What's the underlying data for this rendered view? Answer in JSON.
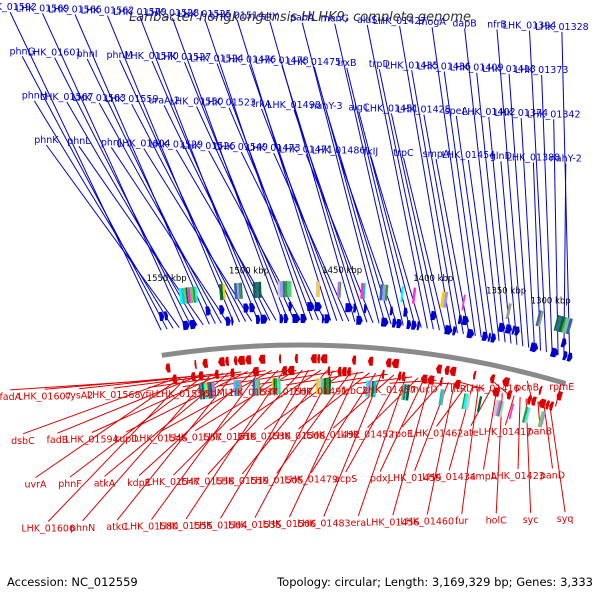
{
  "title": "Laribacter hongkongensis HLHK9, complete genome",
  "footer": {
    "accession": "Accession: NC_012559",
    "summary": "Topology: circular; Length: 3,169,329 bp; Genes: 3,333"
  },
  "colors": {
    "forward_strand": "#0000cc",
    "reverse_strand": "#dd0000",
    "backbone": "#8a8a8a",
    "feature_palette": [
      "#00cccc",
      "#339933",
      "#ff33cc",
      "#9999ff",
      "#66cc66",
      "#999999",
      "#ffcc00",
      "#336699",
      "#cc66ff",
      "#00ffff",
      "#006633",
      "#cccccc"
    ]
  },
  "kbp_ticks": [
    "1300 kbp",
    "1350 kbp",
    "1400 kbp",
    "1450 kbp",
    "1500 kbp",
    "1550 kbp"
  ],
  "forward_genes": [
    "LHK_01592",
    "phnG",
    "phnH",
    "phnK",
    "LHK_01569",
    "LHK_01601",
    "LHK_01567",
    "phnL",
    "LHK_01566",
    "phnI",
    "LHK_01563",
    "phnJ",
    "LHK_01562",
    "phnM",
    "LHK_01559",
    "LHK_01604",
    "LHK_01579",
    "LHK_01570",
    "uraA-2",
    "LHK_01529",
    "LHK_01528",
    "LHK_01527",
    "LHK_01550",
    "LHK_01526",
    "LHK_01525",
    "LHK_01524",
    "LHK_01523",
    "LHK_01549",
    "LHK_01514",
    "LHK_01476",
    "trkA",
    "LHK_01473",
    "sltY",
    "LHK_01478",
    "LHK_01498",
    "LHK_01471",
    "pabA",
    "LHK_01475",
    "nahY-3",
    "LHK_01486",
    "menG",
    "trxB",
    "algC",
    "fkIJ",
    "alaS",
    "trpD",
    "LHK_01451",
    "trpC",
    "LHK_01427",
    "LHK_01435",
    "LHK_01425",
    "smpA",
    "mogA",
    "LHK_01436",
    "speA",
    "LHK_01454",
    "dapB",
    "LHK_01409",
    "LHK_01402",
    "glnD",
    "nfrB",
    "LHK_01413",
    "LHK_01374",
    "LHK_01388",
    "LHK_01394",
    "LHK_01373",
    "LHK_01342",
    "nahY-2",
    "LHK_01328"
  ],
  "reverse_genes": [
    "fadA",
    "dsbC",
    "uvrA",
    "LHK_01606",
    "LHK_01607",
    "fadB",
    "phnF",
    "phnN",
    "cysA2",
    "LHK_01594",
    "atkA",
    "atkC",
    "LHK_01568",
    "kupD",
    "kdpE",
    "LHK_01580",
    "yfjL",
    "LHK_01546",
    "LHK_01547",
    "LHK_01555",
    "LHK_01556",
    "LHK_01557",
    "LHK_01558",
    "LHK_01504",
    "hsdM-1",
    "LHK_01518",
    "LHK_01519",
    "LHK_01535",
    "LHK_01537",
    "LHK_01538",
    "LHK_01505",
    "LHK_01506",
    "LHK_01507",
    "LHK_01508",
    "LHK_01479",
    "LHK_01483",
    "LHK_01491",
    "LHK_01492",
    "acpS",
    "era",
    "fcbC2",
    "LHK_01452",
    "pdxJ",
    "LHK_01456",
    "LHK_01457",
    "rpoE",
    "LHK_01459",
    "LHK_01460",
    "mucD",
    "LHK_01462",
    "LHK_01434",
    "fur",
    "lftR",
    "ate",
    "ampA",
    "holC",
    "LHK_01416",
    "LHK_01417",
    "LHK_01423",
    "syc",
    "pcnB",
    "panB",
    "panD",
    "syq",
    "rpmE"
  ]
}
